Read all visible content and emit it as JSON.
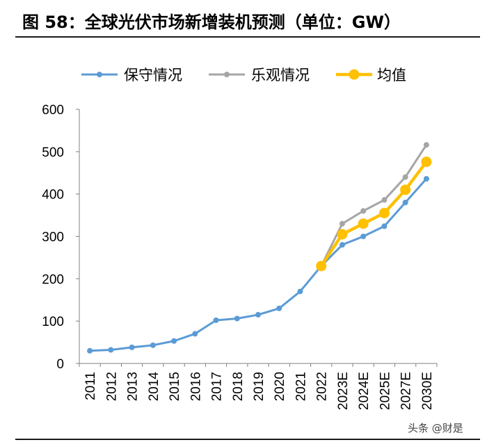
{
  "figure_title": "图 58：全球光伏市场新增装机预测（单位：GW）",
  "watermark": "头条 @财是",
  "chart_data": {
    "type": "line",
    "categories": [
      "2011",
      "2012",
      "2013",
      "2014",
      "2015",
      "2016",
      "2017",
      "2018",
      "2019",
      "2020",
      "2021",
      "2022",
      "2023E",
      "2024E",
      "2025E",
      "2027E",
      "2030E"
    ],
    "series": [
      {
        "name": "保守情况",
        "color": "#5B9BD5",
        "values": [
          30,
          32,
          38,
          43,
          53,
          70,
          102,
          106,
          115,
          130,
          170,
          230,
          280,
          300,
          324,
          380,
          436
        ]
      },
      {
        "name": "乐观情况",
        "color": "#A5A5A5",
        "values": [
          null,
          null,
          null,
          null,
          null,
          null,
          null,
          null,
          null,
          null,
          null,
          230,
          330,
          360,
          386,
          440,
          516
        ]
      },
      {
        "name": "均值",
        "color": "#FFC000",
        "values": [
          null,
          null,
          null,
          null,
          null,
          null,
          null,
          null,
          null,
          null,
          null,
          230,
          305,
          330,
          355,
          410,
          476
        ]
      }
    ],
    "ylim": [
      0,
      600
    ],
    "yticks": [
      0,
      100,
      200,
      300,
      400,
      500,
      600
    ],
    "legend_position": "top",
    "grid": false
  }
}
